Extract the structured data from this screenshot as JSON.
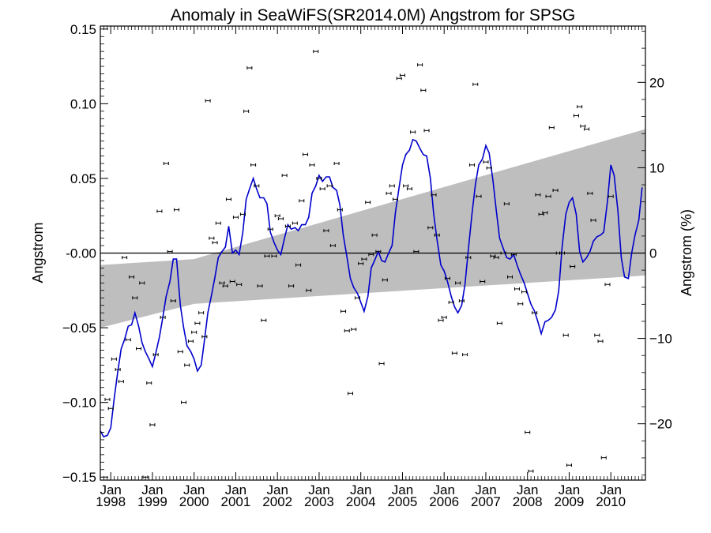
{
  "chart_data": {
    "type": "scatter",
    "title": "Anomaly in SeaWiFS(SR2014.0M) Angstrom for SPSG",
    "ylabel": "Angstrom",
    "y2label": "Angstrom (%)",
    "xlim": [
      1997.75,
      2010.83
    ],
    "ylim": [
      -0.152,
      0.152
    ],
    "y2lim": [
      -26.6,
      26.6
    ],
    "x_ticks": [
      {
        "value": 1998,
        "line1": "Jan",
        "line2": "1998"
      },
      {
        "value": 1999,
        "line1": "Jan",
        "line2": "1999"
      },
      {
        "value": 2000,
        "line1": "Jan",
        "line2": "2000"
      },
      {
        "value": 2001,
        "line1": "Jan",
        "line2": "2001"
      },
      {
        "value": 2002,
        "line1": "Jan",
        "line2": "2002"
      },
      {
        "value": 2003,
        "line1": "Jan",
        "line2": "2003"
      },
      {
        "value": 2004,
        "line1": "Jan",
        "line2": "2004"
      },
      {
        "value": 2005,
        "line1": "Jan",
        "line2": "2005"
      },
      {
        "value": 2006,
        "line1": "Jan",
        "line2": "2006"
      },
      {
        "value": 2007,
        "line1": "Jan",
        "line2": "2007"
      },
      {
        "value": 2008,
        "line1": "Jan",
        "line2": "2008"
      },
      {
        "value": 2009,
        "line1": "Jan",
        "line2": "2009"
      },
      {
        "value": 2010,
        "line1": "Jan",
        "line2": "2010"
      }
    ],
    "y_ticks": [
      {
        "value": 0.15,
        "label": "0.15"
      },
      {
        "value": 0.1,
        "label": "0.10"
      },
      {
        "value": 0.05,
        "label": "0.05"
      },
      {
        "value": 0.0,
        "label": "-0.00"
      },
      {
        "value": -0.05,
        "label": "−0.05"
      },
      {
        "value": -0.1,
        "label": "−0.10"
      },
      {
        "value": -0.15,
        "label": "−0.15"
      }
    ],
    "y2_ticks": [
      {
        "value": 20,
        "label": "20"
      },
      {
        "value": 10,
        "label": "10"
      },
      {
        "value": 0,
        "label": "0"
      },
      {
        "value": -10,
        "label": "−10"
      },
      {
        "value": -20,
        "label": "−20"
      }
    ],
    "zero_line": 0,
    "trend_band": {
      "x": [
        1997.75,
        2000.0,
        2010.83
      ],
      "upper": [
        -0.008,
        -0.004,
        0.083
      ],
      "lower": [
        -0.05,
        -0.034,
        -0.015
      ]
    },
    "smooth": {
      "color": "#0000cc",
      "points": [
        [
          1997.75,
          -0.119
        ],
        [
          1997.83,
          -0.123
        ],
        [
          1997.92,
          -0.122
        ],
        [
          1998.0,
          -0.117
        ],
        [
          1998.08,
          -0.098
        ],
        [
          1998.17,
          -0.079
        ],
        [
          1998.25,
          -0.064
        ],
        [
          1998.33,
          -0.058
        ],
        [
          1998.42,
          -0.049
        ],
        [
          1998.5,
          -0.048
        ],
        [
          1998.58,
          -0.04
        ],
        [
          1998.67,
          -0.049
        ],
        [
          1998.75,
          -0.06
        ],
        [
          1998.83,
          -0.066
        ],
        [
          1998.92,
          -0.071
        ],
        [
          1999.0,
          -0.076
        ],
        [
          1999.08,
          -0.067
        ],
        [
          1999.17,
          -0.056
        ],
        [
          1999.25,
          -0.043
        ],
        [
          1999.33,
          -0.029
        ],
        [
          1999.42,
          -0.019
        ],
        [
          1999.5,
          -0.004
        ],
        [
          1999.58,
          -0.004
        ],
        [
          1999.67,
          -0.035
        ],
        [
          1999.75,
          -0.05
        ],
        [
          1999.83,
          -0.062
        ],
        [
          1999.92,
          -0.066
        ],
        [
          2000.0,
          -0.071
        ],
        [
          2000.08,
          -0.079
        ],
        [
          2000.17,
          -0.075
        ],
        [
          2000.25,
          -0.058
        ],
        [
          2000.33,
          -0.04
        ],
        [
          2000.42,
          -0.028
        ],
        [
          2000.5,
          -0.016
        ],
        [
          2000.58,
          -0.003
        ],
        [
          2000.67,
          0.001
        ],
        [
          2000.75,
          0.004
        ],
        [
          2000.83,
          0.018
        ],
        [
          2000.92,
          0.0
        ],
        [
          2001.0,
          0.002
        ],
        [
          2001.08,
          -0.001
        ],
        [
          2001.17,
          0.014
        ],
        [
          2001.25,
          0.036
        ],
        [
          2001.33,
          0.043
        ],
        [
          2001.42,
          0.05
        ],
        [
          2001.5,
          0.043
        ],
        [
          2001.58,
          0.037
        ],
        [
          2001.67,
          0.037
        ],
        [
          2001.75,
          0.033
        ],
        [
          2001.83,
          0.014
        ],
        [
          2001.92,
          0.007
        ],
        [
          2002.0,
          0.002
        ],
        [
          2002.08,
          -0.001
        ],
        [
          2002.17,
          0.01
        ],
        [
          2002.25,
          0.019
        ],
        [
          2002.33,
          0.016
        ],
        [
          2002.42,
          0.017
        ],
        [
          2002.5,
          0.015
        ],
        [
          2002.58,
          0.019
        ],
        [
          2002.67,
          0.019
        ],
        [
          2002.75,
          0.024
        ],
        [
          2002.83,
          0.04
        ],
        [
          2002.92,
          0.045
        ],
        [
          2003.0,
          0.052
        ],
        [
          2003.08,
          0.048
        ],
        [
          2003.17,
          0.051
        ],
        [
          2003.25,
          0.051
        ],
        [
          2003.33,
          0.044
        ],
        [
          2003.42,
          0.042
        ],
        [
          2003.5,
          0.032
        ],
        [
          2003.58,
          0.012
        ],
        [
          2003.67,
          -0.003
        ],
        [
          2003.75,
          -0.017
        ],
        [
          2003.83,
          -0.023
        ],
        [
          2003.92,
          -0.027
        ],
        [
          2004.0,
          -0.033
        ],
        [
          2004.08,
          -0.039
        ],
        [
          2004.17,
          -0.029
        ],
        [
          2004.25,
          -0.01
        ],
        [
          2004.33,
          -0.005
        ],
        [
          2004.42,
          0.001
        ],
        [
          2004.5,
          -0.005
        ],
        [
          2004.58,
          -0.006
        ],
        [
          2004.67,
          0.0
        ],
        [
          2004.75,
          0.005
        ],
        [
          2004.83,
          0.027
        ],
        [
          2004.92,
          0.044
        ],
        [
          2005.0,
          0.059
        ],
        [
          2005.08,
          0.066
        ],
        [
          2005.17,
          0.069
        ],
        [
          2005.25,
          0.076
        ],
        [
          2005.33,
          0.075
        ],
        [
          2005.42,
          0.07
        ],
        [
          2005.5,
          0.066
        ],
        [
          2005.58,
          0.065
        ],
        [
          2005.67,
          0.05
        ],
        [
          2005.75,
          0.026
        ],
        [
          2005.83,
          0.009
        ],
        [
          2005.92,
          -0.008
        ],
        [
          2006.0,
          -0.012
        ],
        [
          2006.08,
          -0.019
        ],
        [
          2006.17,
          -0.029
        ],
        [
          2006.25,
          -0.036
        ],
        [
          2006.33,
          -0.04
        ],
        [
          2006.42,
          -0.035
        ],
        [
          2006.5,
          -0.021
        ],
        [
          2006.58,
          0.002
        ],
        [
          2006.67,
          0.027
        ],
        [
          2006.75,
          0.046
        ],
        [
          2006.83,
          0.059
        ],
        [
          2006.92,
          0.063
        ],
        [
          2007.0,
          0.072
        ],
        [
          2007.08,
          0.067
        ],
        [
          2007.17,
          0.049
        ],
        [
          2007.25,
          0.029
        ],
        [
          2007.33,
          0.01
        ],
        [
          2007.42,
          0.003
        ],
        [
          2007.5,
          -0.003
        ],
        [
          2007.58,
          -0.004
        ],
        [
          2007.67,
          -0.001
        ],
        [
          2007.75,
          -0.008
        ],
        [
          2007.83,
          -0.014
        ],
        [
          2007.92,
          -0.02
        ],
        [
          2008.0,
          -0.027
        ],
        [
          2008.08,
          -0.034
        ],
        [
          2008.17,
          -0.039
        ],
        [
          2008.25,
          -0.046
        ],
        [
          2008.33,
          -0.054
        ],
        [
          2008.42,
          -0.046
        ],
        [
          2008.5,
          -0.045
        ],
        [
          2008.58,
          -0.043
        ],
        [
          2008.67,
          -0.038
        ],
        [
          2008.75,
          -0.025
        ],
        [
          2008.83,
          0.004
        ],
        [
          2008.92,
          0.026
        ],
        [
          2009.0,
          0.034
        ],
        [
          2009.08,
          0.037
        ],
        [
          2009.17,
          0.026
        ],
        [
          2009.25,
          0.001
        ],
        [
          2009.33,
          -0.006
        ],
        [
          2009.42,
          -0.003
        ],
        [
          2009.5,
          0.001
        ],
        [
          2009.58,
          0.008
        ],
        [
          2009.67,
          0.011
        ],
        [
          2009.75,
          0.012
        ],
        [
          2009.83,
          0.014
        ],
        [
          2009.92,
          0.035
        ],
        [
          2010.0,
          0.059
        ],
        [
          2010.08,
          0.052
        ],
        [
          2010.17,
          0.028
        ],
        [
          2010.25,
          -0.003
        ],
        [
          2010.33,
          -0.016
        ],
        [
          2010.42,
          -0.017
        ],
        [
          2010.5,
          0.0
        ],
        [
          2010.58,
          0.012
        ],
        [
          2010.67,
          0.022
        ],
        [
          2010.75,
          0.044
        ]
      ]
    },
    "points": [
      [
        1997.92,
        -0.098
      ],
      [
        1998.0,
        -0.104
      ],
      [
        1998.08,
        -0.071
      ],
      [
        1998.17,
        -0.078
      ],
      [
        1998.25,
        -0.086
      ],
      [
        1998.33,
        -0.003
      ],
      [
        1998.42,
        -0.058
      ],
      [
        1998.5,
        -0.016
      ],
      [
        1998.58,
        -0.03
      ],
      [
        1998.67,
        -0.064
      ],
      [
        1998.75,
        -0.02
      ],
      [
        1998.83,
        -0.15
      ],
      [
        1998.92,
        -0.087
      ],
      [
        1999.0,
        -0.115
      ],
      [
        1999.08,
        -0.068
      ],
      [
        1999.17,
        0.028
      ],
      [
        1999.25,
        -0.043
      ],
      [
        1999.33,
        0.06
      ],
      [
        1999.42,
        0.001
      ],
      [
        1999.5,
        -0.032
      ],
      [
        1999.58,
        0.029
      ],
      [
        1999.67,
        -0.066
      ],
      [
        1999.75,
        -0.1
      ],
      [
        1999.83,
        -0.075
      ],
      [
        1999.92,
        -0.059
      ],
      [
        2000.0,
        -0.053
      ],
      [
        2000.08,
        -0.047
      ],
      [
        2000.17,
        -0.04
      ],
      [
        2000.25,
        -0.056
      ],
      [
        2000.33,
        0.102
      ],
      [
        2000.42,
        0.01
      ],
      [
        2000.5,
        0.007
      ],
      [
        2000.58,
        0.02
      ],
      [
        2000.67,
        -0.02
      ],
      [
        2000.75,
        -0.022
      ],
      [
        2000.83,
        0.036
      ],
      [
        2000.92,
        -0.019
      ],
      [
        2001.0,
        0.024
      ],
      [
        2001.08,
        -0.021
      ],
      [
        2001.17,
        0.026
      ],
      [
        2001.25,
        0.095
      ],
      [
        2001.33,
        0.124
      ],
      [
        2001.42,
        0.059
      ],
      [
        2001.5,
        0.045
      ],
      [
        2001.58,
        -0.022
      ],
      [
        2001.67,
        -0.045
      ],
      [
        2001.75,
        -0.002
      ],
      [
        2001.83,
        0.016
      ],
      [
        2001.92,
        -0.002
      ],
      [
        2002.0,
        0.025
      ],
      [
        2002.08,
        0.023
      ],
      [
        2002.17,
        0.052
      ],
      [
        2002.25,
        0.018
      ],
      [
        2002.33,
        -0.022
      ],
      [
        2002.42,
        0.02
      ],
      [
        2002.5,
        -0.008
      ],
      [
        2002.58,
        0.035
      ],
      [
        2002.67,
        0.066
      ],
      [
        2002.75,
        -0.025
      ],
      [
        2002.83,
        0.059
      ],
      [
        2002.92,
        0.135
      ],
      [
        2003.0,
        0.05
      ],
      [
        2003.08,
        0.043
      ],
      [
        2003.17,
        0.015
      ],
      [
        2003.25,
        0.045
      ],
      [
        2003.33,
        0.005
      ],
      [
        2003.42,
        0.06
      ],
      [
        2003.5,
        0.029
      ],
      [
        2003.58,
        -0.039
      ],
      [
        2003.67,
        -0.052
      ],
      [
        2003.75,
        -0.094
      ],
      [
        2003.83,
        -0.051
      ],
      [
        2003.92,
        -0.03
      ],
      [
        2004.0,
        -0.007
      ],
      [
        2004.08,
        -0.004
      ],
      [
        2004.17,
        0.034
      ],
      [
        2004.25,
        -0.001
      ],
      [
        2004.33,
        0.012
      ],
      [
        2004.42,
        0.001
      ],
      [
        2004.5,
        -0.074
      ],
      [
        2004.58,
        -0.018
      ],
      [
        2004.67,
        0.04
      ],
      [
        2004.75,
        0.045
      ],
      [
        2004.83,
        0.036
      ],
      [
        2004.92,
        0.117
      ],
      [
        2005.0,
        0.119
      ],
      [
        2005.08,
        0.045
      ],
      [
        2005.17,
        0.043
      ],
      [
        2005.25,
        0.081
      ],
      [
        2005.33,
        0.001
      ],
      [
        2005.42,
        0.126
      ],
      [
        2005.5,
        0.109
      ],
      [
        2005.58,
        0.082
      ],
      [
        2005.67,
        0.017
      ],
      [
        2005.75,
        0.039
      ],
      [
        2005.83,
        0.012
      ],
      [
        2005.92,
        -0.045
      ],
      [
        2006.0,
        -0.043
      ],
      [
        2006.08,
        -0.017
      ],
      [
        2006.17,
        -0.033
      ],
      [
        2006.25,
        -0.067
      ],
      [
        2006.33,
        -0.02
      ],
      [
        2006.42,
        -0.032
      ],
      [
        2006.5,
        -0.068
      ],
      [
        2006.58,
        -0.003
      ],
      [
        2006.67,
        0.059
      ],
      [
        2006.75,
        0.113
      ],
      [
        2006.83,
        0.038
      ],
      [
        2006.92,
        -0.019
      ],
      [
        2007.0,
        0.061
      ],
      [
        2007.08,
        0.057
      ],
      [
        2007.17,
        -0.002
      ],
      [
        2007.25,
        -0.003
      ],
      [
        2007.33,
        -0.047
      ],
      [
        2007.42,
        0.0
      ],
      [
        2007.5,
        0.033
      ],
      [
        2007.58,
        -0.016
      ],
      [
        2007.67,
        -0.001
      ],
      [
        2007.75,
        -0.024
      ],
      [
        2007.83,
        -0.034
      ],
      [
        2007.92,
        -0.026
      ],
      [
        2008.0,
        -0.12
      ],
      [
        2008.08,
        -0.146
      ],
      [
        2008.17,
        -0.04
      ],
      [
        2008.25,
        0.039
      ],
      [
        2008.33,
        0.026
      ],
      [
        2008.42,
        0.027
      ],
      [
        2008.5,
        0.038
      ],
      [
        2008.58,
        0.084
      ],
      [
        2008.67,
        0.042
      ],
      [
        2008.75,
        0.0
      ],
      [
        2008.83,
        0.0
      ],
      [
        2008.92,
        -0.055
      ],
      [
        2009.0,
        -0.142
      ],
      [
        2009.08,
        -0.009
      ],
      [
        2009.17,
        0.092
      ],
      [
        2009.25,
        0.098
      ],
      [
        2009.33,
        0.085
      ],
      [
        2009.42,
        0.083
      ],
      [
        2009.5,
        0.04
      ],
      [
        2009.58,
        0.022
      ],
      [
        2009.67,
        -0.055
      ],
      [
        2009.75,
        -0.059
      ],
      [
        2009.83,
        -0.137
      ],
      [
        2009.92,
        -0.021
      ],
      [
        2010.0,
        0.038
      ]
    ]
  }
}
